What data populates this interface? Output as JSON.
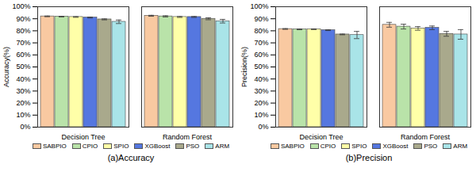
{
  "chart_data": [
    {
      "type": "bar",
      "title": "(a)Accuracy",
      "ylabel": "Accuracy(%)",
      "categories": [
        "Decision Tree",
        "Random Forest"
      ],
      "series": [
        {
          "name": "SABPIO",
          "color": "#f9c9a1",
          "values": [
            92,
            92.5
          ],
          "errors": [
            0.3,
            0.4
          ]
        },
        {
          "name": "CPIO",
          "color": "#b9e3a9",
          "values": [
            91.8,
            92
          ],
          "errors": [
            0.3,
            0.5
          ]
        },
        {
          "name": "SPIO",
          "color": "#ffffa8",
          "values": [
            91.5,
            91.5
          ],
          "errors": [
            0.3,
            0.4
          ]
        },
        {
          "name": "XGBoost",
          "color": "#5577e0",
          "values": [
            91,
            91.5
          ],
          "errors": [
            0.4,
            0.4
          ]
        },
        {
          "name": "PSO",
          "color": "#a9a98c",
          "values": [
            89.5,
            90
          ],
          "errors": [
            0.4,
            0.8
          ]
        },
        {
          "name": "ARM",
          "color": "#a9e4e8",
          "values": [
            87.5,
            88
          ],
          "errors": [
            1.5,
            1.5
          ]
        }
      ],
      "ylim": [
        0,
        100
      ],
      "yticks": [
        {
          "value": 0,
          "label": "0%"
        },
        {
          "value": 10,
          "label": "10%"
        },
        {
          "value": 20,
          "label": "20%"
        },
        {
          "value": 30,
          "label": "30%"
        },
        {
          "value": 40,
          "label": "40%"
        },
        {
          "value": 50,
          "label": "50%"
        },
        {
          "value": 60,
          "label": "60%"
        },
        {
          "value": 70,
          "label": "70%"
        },
        {
          "value": 80,
          "label": "80%"
        },
        {
          "value": 90,
          "label": "90%"
        },
        {
          "value": 100,
          "label": "100%"
        }
      ],
      "legend": "bottom",
      "grid": false
    },
    {
      "type": "bar",
      "title": "(b)Precision",
      "ylabel": "Precision(%)",
      "categories": [
        "Decision Tree",
        "Random Forest"
      ],
      "series": [
        {
          "name": "SABPIO",
          "color": "#f9c9a1",
          "values": [
            81.5,
            85
          ],
          "errors": [
            0.3,
            2
          ]
        },
        {
          "name": "CPIO",
          "color": "#b9e3a9",
          "values": [
            81.2,
            83.5
          ],
          "errors": [
            0.3,
            2
          ]
        },
        {
          "name": "SPIO",
          "color": "#ffffa8",
          "values": [
            81.3,
            82
          ],
          "errors": [
            0.3,
            1.5
          ]
        },
        {
          "name": "XGBoost",
          "color": "#5577e0",
          "values": [
            80.5,
            82.5
          ],
          "errors": [
            0.3,
            1.5
          ]
        },
        {
          "name": "PSO",
          "color": "#a9a98c",
          "values": [
            77,
            77.5
          ],
          "errors": [
            0.3,
            2
          ]
        },
        {
          "name": "ARM",
          "color": "#a9e4e8",
          "values": [
            76.5,
            77
          ],
          "errors": [
            3,
            4
          ]
        }
      ],
      "ylim": [
        0,
        100
      ],
      "yticks": [
        {
          "value": 0,
          "label": "0%"
        },
        {
          "value": 10,
          "label": "10%"
        },
        {
          "value": 20,
          "label": "20%"
        },
        {
          "value": 30,
          "label": "30%"
        },
        {
          "value": 40,
          "label": "40%"
        },
        {
          "value": 50,
          "label": "50%"
        },
        {
          "value": 60,
          "label": "60%"
        },
        {
          "value": 70,
          "label": "70%"
        },
        {
          "value": 80,
          "label": "80%"
        },
        {
          "value": 90,
          "label": "90%"
        },
        {
          "value": 100,
          "label": "100%"
        }
      ],
      "legend": "bottom",
      "grid": false
    }
  ]
}
